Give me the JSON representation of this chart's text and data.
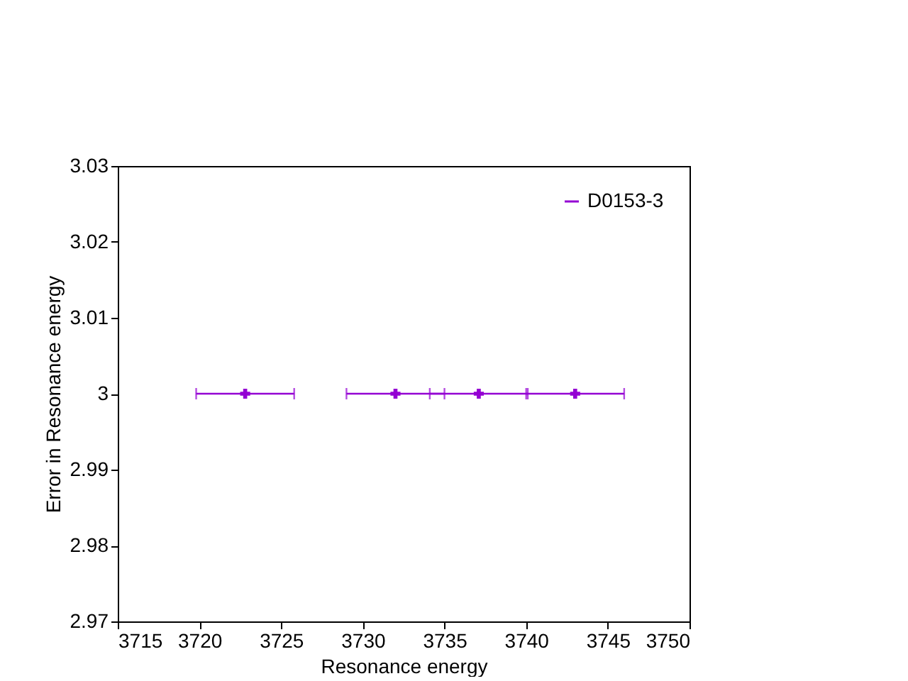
{
  "chart_data": {
    "type": "scatter",
    "xlabel": "Resonance energy",
    "ylabel": "Error in Resonance energy",
    "xlim": [
      3715,
      3750
    ],
    "xticks": [
      3715,
      3720,
      3725,
      3730,
      3735,
      3740,
      3745,
      3750
    ],
    "ylim": [
      2.97,
      3.03
    ],
    "yticks": [
      2.97,
      2.98,
      2.99,
      3,
      3.01,
      3.02,
      3.03
    ],
    "series": [
      {
        "name": "D0153-3",
        "color": "#9400d3",
        "x": [
          3722.8,
          3732.0,
          3737.1,
          3743.0
        ],
        "values": [
          3,
          3,
          3,
          3
        ],
        "xerrors": [
          3,
          3,
          3,
          3
        ]
      }
    ],
    "marker": "cross",
    "legend": "top right",
    "grid": false
  }
}
